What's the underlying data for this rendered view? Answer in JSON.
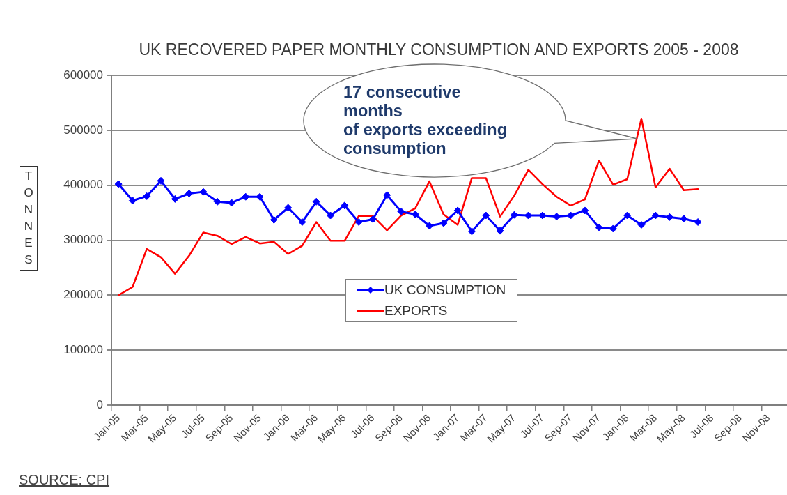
{
  "chart_data": {
    "type": "line",
    "title": "UK RECOVERED PAPER MONTHLY CONSUMPTION AND EXPORTS 2005 - 2008",
    "ylabel": "TONNES",
    "annotations": [
      "17 consecutive\nmonths\nof exports exceeding\nconsumption",
      "SOURCE: CPI"
    ],
    "categories": [
      "Jan-05",
      null,
      "Mar-05",
      null,
      "May-05",
      null,
      "Jul-05",
      null,
      "Sep-05",
      null,
      "Nov-05",
      null,
      "Jan-06",
      null,
      "Mar-06",
      null,
      "May-06",
      null,
      "Jul-06",
      null,
      "Sep-06",
      null,
      "Nov-06",
      null,
      "Jan-07",
      null,
      "Mar-07",
      null,
      "May-07",
      null,
      "Jul-07",
      null,
      "Sep-07",
      null,
      "Nov-07",
      null,
      "Jan-08",
      null,
      "Mar-08",
      null,
      "May-08",
      null,
      "Jul-08",
      null,
      "Sep-08",
      null,
      "Nov-08",
      null
    ],
    "series": [
      {
        "name": "UK CONSUMPTION",
        "color": "#0000ff",
        "marker": "diamond",
        "values": [
          402000,
          372000,
          380000,
          408000,
          375000,
          385000,
          388000,
          370000,
          368000,
          379000,
          379000,
          337000,
          359000,
          333000,
          370000,
          345000,
          363000,
          333000,
          338000,
          382000,
          352000,
          347000,
          326000,
          331000,
          354000,
          316000,
          345000,
          317000,
          346000,
          345000,
          345000,
          343000,
          345000,
          354000,
          323000,
          321000,
          345000,
          328000,
          345000,
          342000,
          339000,
          333000,
          null,
          null,
          null,
          null,
          null,
          null
        ]
      },
      {
        "name": "EXPORTS",
        "color": "#ff0000",
        "marker": "none",
        "values": [
          200000,
          215000,
          284000,
          269000,
          239000,
          272000,
          314000,
          308000,
          293000,
          306000,
          294000,
          297000,
          275000,
          290000,
          333000,
          299000,
          299000,
          344000,
          344000,
          318000,
          345000,
          358000,
          407000,
          347000,
          328000,
          413000,
          413000,
          343000,
          381000,
          428000,
          402000,
          379000,
          363000,
          374000,
          445000,
          401000,
          411000,
          521000,
          396000,
          430000,
          391000,
          393000,
          null,
          null,
          null,
          null,
          null,
          null
        ]
      }
    ],
    "ylim": [
      0,
      600000
    ],
    "yticks": [
      0,
      100000,
      200000,
      300000,
      400000,
      500000,
      600000
    ],
    "grid": "y",
    "legend": "bottom"
  }
}
